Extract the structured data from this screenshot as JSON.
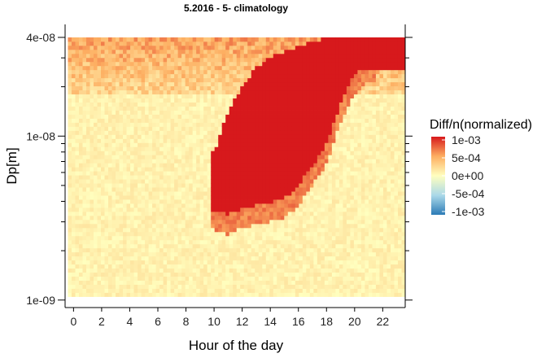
{
  "chart_data": {
    "type": "heatmap",
    "title": "5.2016 - 5- climatology",
    "xlabel": "Hour of the day",
    "ylabel": "Dp[m]",
    "x_ticks": [
      "0",
      "2",
      "4",
      "6",
      "8",
      "10",
      "12",
      "14",
      "16",
      "18",
      "20",
      "22"
    ],
    "x_tick_values": [
      0,
      2,
      4,
      6,
      8,
      10,
      12,
      14,
      16,
      18,
      20,
      22
    ],
    "y_ticks": [
      "1e-09",
      "1e-08",
      "4e-08"
    ],
    "y_tick_values": [
      1e-09,
      1e-08,
      4e-08
    ],
    "y_scale": "log",
    "xlim": [
      -0.6,
      23.6
    ],
    "ylim": [
      9e-10,
      4.8e-08
    ],
    "data_x_range": [
      0,
      23
    ],
    "data_y_range": [
      1.05e-09,
      4e-08
    ],
    "color_scale": {
      "title": "Diff/n(normalized)",
      "min": -0.001,
      "max": 0.001,
      "labels": [
        "1e-03",
        "5e-04",
        "0e+00",
        "-5e-04",
        "-1e-03"
      ],
      "stops": [
        "#d7191c",
        "#fdae61",
        "#ffffbf",
        "#abd9e9",
        "#2c7bb6"
      ]
    },
    "description_data": {
      "approx_values_by_hour_and_log10_dp": {
        "background_small": 0.0001,
        "upper_band_above_2e-08": 0.0004,
        "banana_event_saturated": 0.001,
        "banana_rim": 0.0006
      },
      "banana_event_lower_edge_log10_dp": [
        {
          "hour": 10,
          "value": -8.45
        },
        {
          "hour": 11,
          "value": -8.48
        },
        {
          "hour": 12,
          "value": -8.44
        },
        {
          "hour": 13,
          "value": -8.42
        },
        {
          "hour": 14,
          "value": -8.4
        },
        {
          "hour": 15,
          "value": -8.38
        },
        {
          "hour": 16,
          "value": -8.3
        },
        {
          "hour": 17,
          "value": -8.18
        },
        {
          "hour": 18,
          "value": -8.05
        },
        {
          "hour": 19,
          "value": -7.8
        },
        {
          "hour": 20,
          "value": -7.62
        },
        {
          "hour": 21,
          "value": -7.55
        }
      ],
      "banana_event_upper_edge_log10_dp": [
        {
          "hour": 10,
          "value": -8.1
        },
        {
          "hour": 11,
          "value": -7.85
        },
        {
          "hour": 12,
          "value": -7.7
        },
        {
          "hour": 13,
          "value": -7.58
        },
        {
          "hour": 14,
          "value": -7.52
        },
        {
          "hour": 15,
          "value": -7.48
        },
        {
          "hour": 16,
          "value": -7.45
        },
        {
          "hour": 17,
          "value": -7.42
        },
        {
          "hour": 18,
          "value": -7.4
        },
        {
          "hour": 19,
          "value": -7.4
        },
        {
          "hour": 20,
          "value": -7.4
        },
        {
          "hour": 21,
          "value": -7.4
        }
      ]
    }
  }
}
